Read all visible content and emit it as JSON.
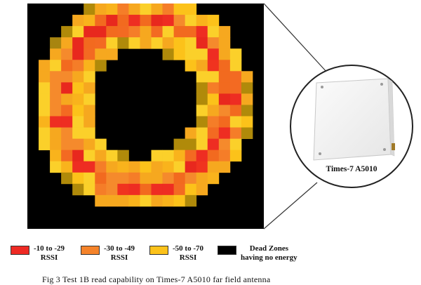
{
  "antenna": {
    "model_label": "Times-7 A5010"
  },
  "legend": [
    {
      "label_line1": "-10 to -29",
      "label_line2": "RSSI",
      "color": "#ee2a24"
    },
    {
      "label_line1": "-30 to -49",
      "label_line2": "RSSI",
      "color": "#f5832a"
    },
    {
      "label_line1": "-50 to -70",
      "label_line2": "RSSI",
      "color": "#fcc21a"
    },
    {
      "label_line1": "Dead Zones",
      "label_line2": "having no energy",
      "color": "#000000"
    }
  ],
  "caption": "Fig 3 Test 1B read capability on Times-7 A5010 far field antenna",
  "colors": {
    "dim_yellow": "#b08a0a",
    "background": "#000000"
  }
}
